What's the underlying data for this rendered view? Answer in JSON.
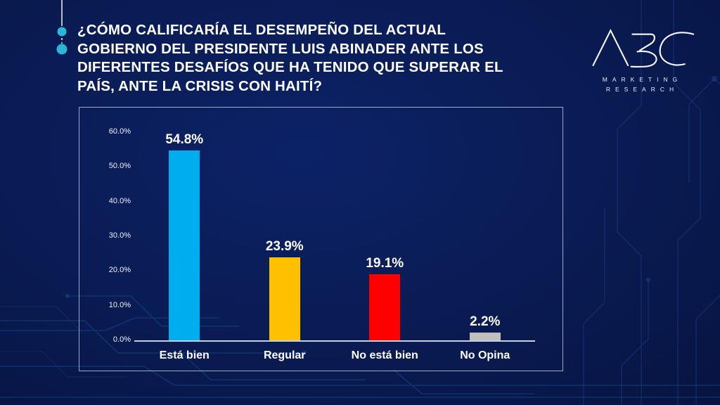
{
  "title": {
    "lines": [
      "¿CÓMO CALIFICARÍA EL DESEMPEÑO DEL ACTUAL",
      "GOBIERNO DEL PRESIDENTE LUIS ABINADER  ANTE LOS",
      "DIFERENTES DESAFÍOS QUE HA TENIDO QUE SUPERAR EL",
      "PAÍS, ANTE LA CRISIS CON HAITÍ?"
    ]
  },
  "logo": {
    "name": "ABC",
    "subtitle_line1": "MARKETING",
    "subtitle_line2": "RESEARCH"
  },
  "chart_data": {
    "type": "bar",
    "title": "",
    "categories": [
      "Está bien",
      "Regular",
      "No está bien",
      "No Opina"
    ],
    "values": [
      54.8,
      23.9,
      19.1,
      2.2
    ],
    "value_labels": [
      "54.8%",
      "23.9%",
      "19.1%",
      "2.2%"
    ],
    "bar_colors": [
      "#00AEEF",
      "#FFC000",
      "#FF0000",
      "#BFBFBF"
    ],
    "y_ticks": [
      "0.0%",
      "10.0%",
      "20.0%",
      "30.0%",
      "40.0%",
      "50.0%",
      "60.0%"
    ],
    "y_tick_values": [
      0,
      10,
      20,
      30,
      40,
      50,
      60
    ],
    "ylim": [
      0,
      60
    ],
    "xlabel": "",
    "ylabel": "",
    "grid": false,
    "legend": false
  },
  "colors": {
    "background_center": "#0C2267",
    "background_edge": "#071441",
    "bullet_cyan": "#29B6D8",
    "axis_line": "#D7DFF0",
    "chart_border": "#CDD7EB"
  }
}
